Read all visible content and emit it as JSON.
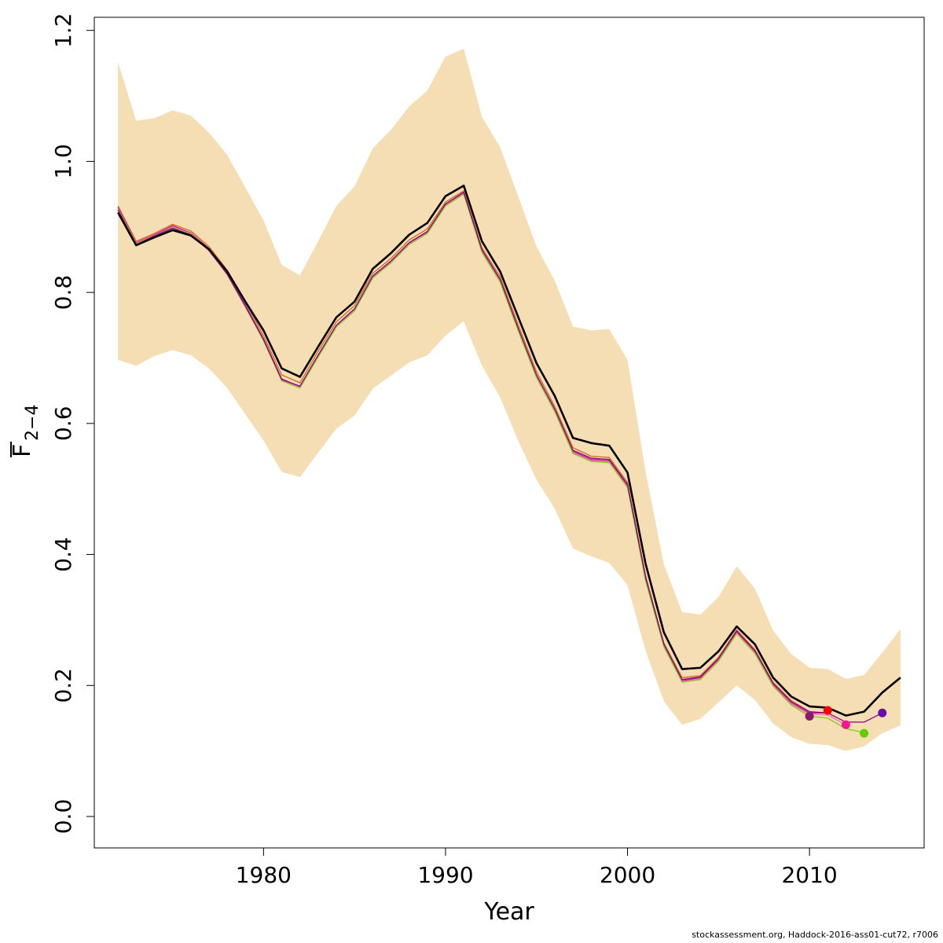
{
  "chart_data": {
    "type": "line",
    "xlabel": "Year",
    "ylabel_main": "F",
    "ylabel_sub": "2−4",
    "xlim": [
      1970.7,
      2016.3
    ],
    "ylim": [
      -0.048,
      1.22
    ],
    "x_ticks": [
      1980,
      1990,
      2000,
      2010
    ],
    "y_ticks": [
      0.0,
      0.2,
      0.4,
      0.6,
      0.8,
      1.0,
      1.2
    ],
    "y_tick_labels": [
      "0.0",
      "0.2",
      "0.4",
      "0.6",
      "0.8",
      "1.0",
      "1.2"
    ],
    "band_color": "#F5DEB3",
    "band": {
      "x": [
        1972,
        1973,
        1974,
        1975,
        1976,
        1977,
        1978,
        1979,
        1980,
        1981,
        1982,
        1983,
        1984,
        1985,
        1986,
        1987,
        1988,
        1989,
        1990,
        1991,
        1992,
        1993,
        1994,
        1995,
        1996,
        1997,
        1998,
        1999,
        2000,
        2001,
        2002,
        2003,
        2004,
        2005,
        2006,
        2007,
        2008,
        2009,
        2010,
        2011,
        2012,
        2013,
        2014,
        2015
      ],
      "upper": [
        1.152,
        1.062,
        1.066,
        1.078,
        1.07,
        1.044,
        1.01,
        0.96,
        0.91,
        0.842,
        0.826,
        0.878,
        0.932,
        0.962,
        1.02,
        1.048,
        1.084,
        1.108,
        1.16,
        1.172,
        1.068,
        1.022,
        0.946,
        0.87,
        0.818,
        0.748,
        0.742,
        0.744,
        0.697,
        0.525,
        0.385,
        0.312,
        0.308,
        0.335,
        0.382,
        0.348,
        0.284,
        0.248,
        0.227,
        0.225,
        0.21,
        0.216,
        0.25,
        0.286
      ],
      "lower": [
        0.697,
        0.688,
        0.703,
        0.712,
        0.704,
        0.684,
        0.654,
        0.614,
        0.574,
        0.526,
        0.518,
        0.555,
        0.592,
        0.612,
        0.653,
        0.673,
        0.693,
        0.704,
        0.734,
        0.756,
        0.688,
        0.64,
        0.573,
        0.514,
        0.47,
        0.409,
        0.397,
        0.387,
        0.353,
        0.252,
        0.176,
        0.14,
        0.149,
        0.174,
        0.2,
        0.178,
        0.142,
        0.121,
        0.111,
        0.109,
        0.1,
        0.107,
        0.127,
        0.139
      ]
    },
    "series": [
      {
        "color": "#D2691E",
        "width": 1.3,
        "x": [
          1972,
          1973,
          1974,
          1975,
          1976,
          1977,
          1978,
          1979,
          1980,
          1981,
          1982,
          1983,
          1984,
          1985,
          1986,
          1987,
          1988,
          1989,
          1990,
          1991,
          1992,
          1993,
          1994,
          1995,
          1996,
          1997,
          1998,
          1999,
          2000,
          2001,
          2002,
          2003,
          2004,
          2005,
          2006,
          2007,
          2008,
          2009,
          2010
        ],
        "y": [
          0.932,
          0.878,
          0.89,
          0.904,
          0.894,
          0.87,
          0.834,
          0.785,
          0.734,
          0.674,
          0.662,
          0.71,
          0.755,
          0.78,
          0.829,
          0.852,
          0.88,
          0.897,
          0.938,
          0.955,
          0.868,
          0.824,
          0.75,
          0.679,
          0.626,
          0.563,
          0.55,
          0.548,
          0.51,
          0.367,
          0.265,
          0.212,
          0.215,
          0.243,
          0.285,
          0.255,
          0.205,
          0.177,
          0.16
        ]
      },
      {
        "color": "#C71585",
        "width": 1.3,
        "x": [
          1972,
          1973,
          1974,
          1975,
          1976,
          1977,
          1978,
          1979,
          1980,
          1981,
          1982,
          1983,
          1984,
          1985,
          1986,
          1987,
          1988,
          1989,
          1990,
          1991,
          1992,
          1993,
          1994,
          1995,
          1996,
          1997,
          1998,
          1999,
          2000,
          2001,
          2002,
          2003,
          2004,
          2005,
          2006,
          2007,
          2008,
          2009,
          2010,
          2011
        ],
        "y": [
          0.93,
          0.876,
          0.888,
          0.902,
          0.891,
          0.867,
          0.83,
          0.781,
          0.729,
          0.668,
          0.656,
          0.704,
          0.749,
          0.774,
          0.824,
          0.847,
          0.875,
          0.892,
          0.934,
          0.952,
          0.863,
          0.818,
          0.743,
          0.672,
          0.62,
          0.557,
          0.545,
          0.543,
          0.505,
          0.362,
          0.261,
          0.207,
          0.212,
          0.24,
          0.282,
          0.252,
          0.201,
          0.173,
          0.158,
          0.158
        ]
      },
      {
        "color": "#FF69B4",
        "width": 1.3,
        "x": [
          1972,
          1973,
          1974,
          1975,
          1976,
          1977,
          1978,
          1979,
          1980,
          1981,
          1982,
          1983,
          1984,
          1985,
          1986,
          1987,
          1988,
          1989,
          1990,
          1991,
          1992,
          1993,
          1994,
          1995,
          1996,
          1997,
          1998,
          1999,
          2000,
          2001,
          2002,
          2003,
          2004,
          2005,
          2006,
          2007,
          2008,
          2009,
          2010,
          2011,
          2012
        ],
        "y": [
          0.928,
          0.875,
          0.887,
          0.9,
          0.89,
          0.866,
          0.828,
          0.779,
          0.727,
          0.666,
          0.655,
          0.702,
          0.748,
          0.773,
          0.823,
          0.846,
          0.874,
          0.891,
          0.933,
          0.951,
          0.862,
          0.817,
          0.742,
          0.671,
          0.619,
          0.555,
          0.543,
          0.541,
          0.503,
          0.36,
          0.26,
          0.206,
          0.21,
          0.238,
          0.28,
          0.25,
          0.2,
          0.172,
          0.156,
          0.155,
          0.14
        ]
      },
      {
        "color": "#7CCD1E",
        "width": 1.3,
        "x": [
          1972,
          1973,
          1974,
          1975,
          1976,
          1977,
          1978,
          1979,
          1980,
          1981,
          1982,
          1983,
          1984,
          1985,
          1986,
          1987,
          1988,
          1989,
          1990,
          1991,
          1992,
          1993,
          1994,
          1995,
          1996,
          1997,
          1998,
          1999,
          2000,
          2001,
          2002,
          2003,
          2004,
          2005,
          2006,
          2007,
          2008,
          2009,
          2010,
          2011,
          2012,
          2013
        ],
        "y": [
          0.927,
          0.874,
          0.886,
          0.899,
          0.889,
          0.865,
          0.827,
          0.778,
          0.726,
          0.665,
          0.654,
          0.701,
          0.747,
          0.772,
          0.822,
          0.845,
          0.873,
          0.89,
          0.932,
          0.95,
          0.861,
          0.816,
          0.741,
          0.67,
          0.618,
          0.554,
          0.542,
          0.54,
          0.502,
          0.359,
          0.259,
          0.205,
          0.209,
          0.237,
          0.279,
          0.249,
          0.199,
          0.17,
          0.153,
          0.15,
          0.134,
          0.128
        ]
      },
      {
        "color": "#8B008B",
        "width": 1.3,
        "x": [
          1972,
          1973,
          1974,
          1975,
          1976,
          1977,
          1978,
          1979,
          1980,
          1981,
          1982,
          1983,
          1984,
          1985,
          1986,
          1987,
          1988,
          1989,
          1990,
          1991,
          1992,
          1993,
          1994,
          1995,
          1996,
          1997,
          1998,
          1999,
          2000,
          2001,
          2002,
          2003,
          2004,
          2005,
          2006,
          2007,
          2008,
          2009,
          2010,
          2011,
          2012,
          2013,
          2014
        ],
        "y": [
          0.926,
          0.873,
          0.886,
          0.898,
          0.888,
          0.864,
          0.828,
          0.779,
          0.728,
          0.667,
          0.657,
          0.704,
          0.75,
          0.775,
          0.825,
          0.848,
          0.876,
          0.893,
          0.935,
          0.953,
          0.865,
          0.82,
          0.745,
          0.674,
          0.622,
          0.559,
          0.547,
          0.545,
          0.507,
          0.364,
          0.263,
          0.209,
          0.213,
          0.241,
          0.283,
          0.253,
          0.203,
          0.175,
          0.16,
          0.158,
          0.144,
          0.144,
          0.158
        ]
      },
      {
        "color": "#000000",
        "width": 2.6,
        "x": [
          1972,
          1973,
          1974,
          1975,
          1976,
          1977,
          1978,
          1979,
          1980,
          1981,
          1982,
          1983,
          1984,
          1985,
          1986,
          1987,
          1988,
          1989,
          1990,
          1991,
          1992,
          1993,
          1994,
          1995,
          1996,
          1997,
          1998,
          1999,
          2000,
          2001,
          2002,
          2003,
          2004,
          2005,
          2006,
          2007,
          2008,
          2009,
          2010,
          2011,
          2012,
          2013,
          2014,
          2015
        ],
        "y": [
          0.922,
          0.872,
          0.884,
          0.895,
          0.887,
          0.866,
          0.832,
          0.786,
          0.742,
          0.684,
          0.671,
          0.717,
          0.762,
          0.786,
          0.836,
          0.86,
          0.888,
          0.906,
          0.947,
          0.963,
          0.878,
          0.832,
          0.762,
          0.692,
          0.642,
          0.578,
          0.57,
          0.566,
          0.525,
          0.385,
          0.281,
          0.225,
          0.227,
          0.252,
          0.29,
          0.263,
          0.212,
          0.183,
          0.168,
          0.166,
          0.154,
          0.16,
          0.189,
          0.212
        ]
      }
    ],
    "points": [
      {
        "x": 2010,
        "y": 0.153,
        "color": "#8B1A6B"
      },
      {
        "x": 2011,
        "y": 0.162,
        "color": "#FF0000"
      },
      {
        "x": 2012,
        "y": 0.14,
        "color": "#FF1493"
      },
      {
        "x": 2013,
        "y": 0.127,
        "color": "#66CD00"
      },
      {
        "x": 2014,
        "y": 0.158,
        "color": "#6A0DAD"
      }
    ]
  },
  "credit": "stockassessment.org, Haddock-2016-ass01-cut72, r7006"
}
